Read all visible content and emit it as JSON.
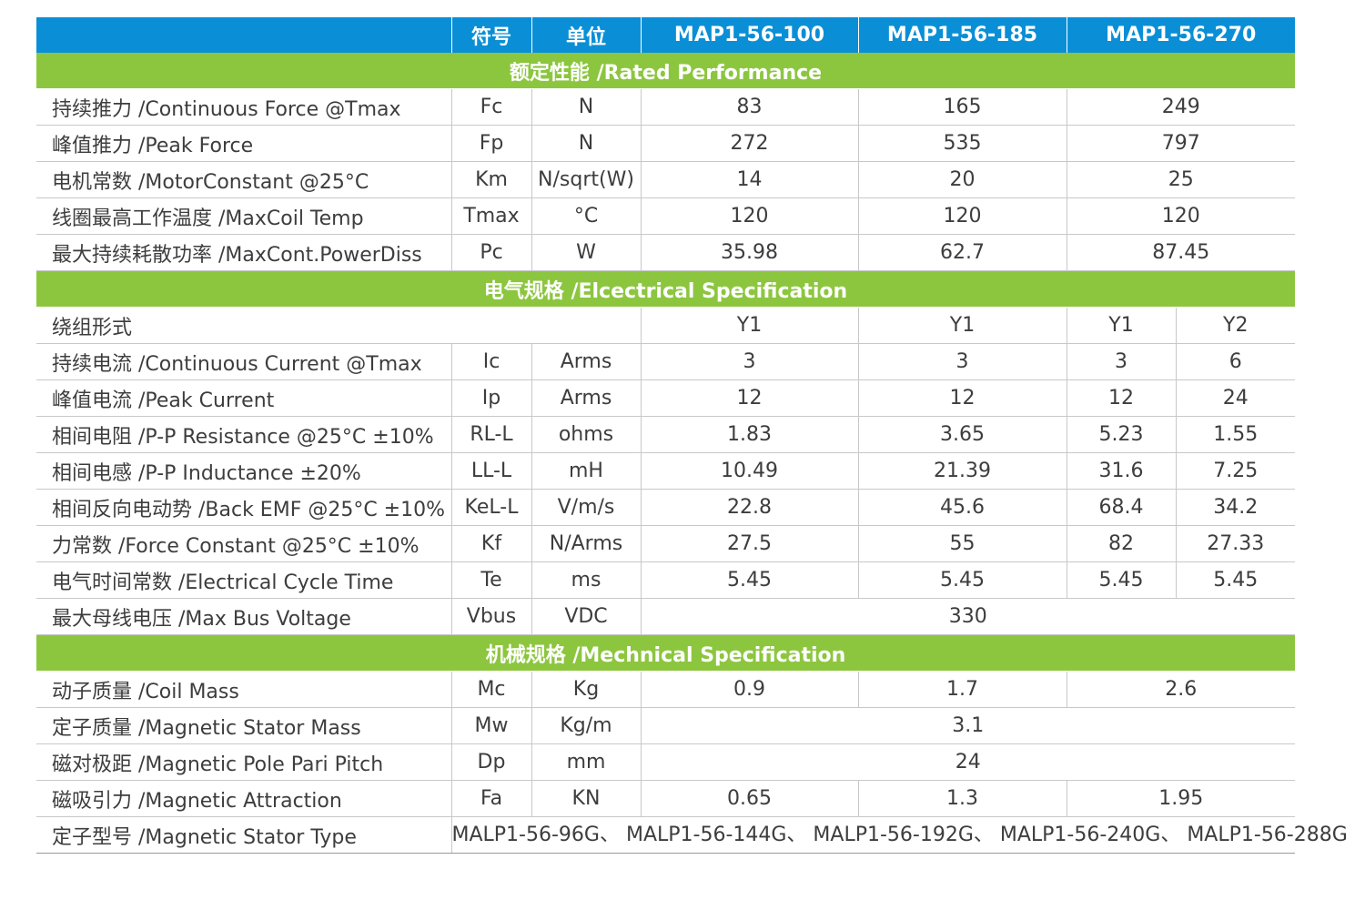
{
  "header": {
    "blank": "",
    "symbol": "符号",
    "unit": "单位",
    "models": [
      "MAP1-56-100",
      "MAP1-56-185",
      "MAP1-56-270"
    ]
  },
  "sections": {
    "rated": "额定性能 /Rated Performance",
    "electrical": "电气规格 /Elcectrical Specification",
    "mechanical": "机械规格 /Mechnical Specification"
  },
  "rated_rows": [
    {
      "param": "持续推力 /Continuous Force @Tmax",
      "symbol": "Fc",
      "unit": "N",
      "v": [
        "83",
        "165",
        "249"
      ]
    },
    {
      "param": "峰值推力 /Peak Force",
      "symbol": "Fp",
      "unit": "N",
      "v": [
        "272",
        "535",
        "797"
      ]
    },
    {
      "param": "电机常数 /MotorConstant @25°C",
      "symbol": "Km",
      "unit": "N/sqrt(W)",
      "v": [
        "14",
        "20",
        "25"
      ]
    },
    {
      "param": "线圈最高工作温度 /MaxCoil Temp",
      "symbol": "Tmax",
      "unit": "°C",
      "v": [
        "120",
        "120",
        "120"
      ]
    },
    {
      "param": "最大持续耗散功率 /MaxCont.PowerDiss",
      "symbol": "Pc",
      "unit": "W",
      "v": [
        "35.98",
        "62.7",
        "87.45"
      ]
    }
  ],
  "winding": {
    "param": "绕组形式",
    "v": [
      "Y1",
      "Y1",
      "Y1",
      "Y2"
    ]
  },
  "electrical_rows": [
    {
      "param": "持续电流 /Continuous Current @Tmax",
      "symbol": "Ic",
      "unit": "Arms",
      "v": [
        "3",
        "3",
        "3",
        "6"
      ]
    },
    {
      "param": "峰值电流 /Peak Current",
      "symbol": "Ip",
      "unit": "Arms",
      "v": [
        "12",
        "12",
        "12",
        "24"
      ]
    },
    {
      "param": "相间电阻 /P-P Resistance @25°C ±10%",
      "symbol": "RL-L",
      "unit": "ohms",
      "v": [
        "1.83",
        "3.65",
        "5.23",
        "1.55"
      ]
    },
    {
      "param": "相间电感 /P-P Inductance ±20%",
      "symbol": "LL-L",
      "unit": "mH",
      "v": [
        "10.49",
        "21.39",
        "31.6",
        "7.25"
      ]
    },
    {
      "param": "相间反向电动势 /Back EMF @25°C ±10%",
      "symbol": "KeL-L",
      "unit": "V/m/s",
      "v": [
        "22.8",
        "45.6",
        "68.4",
        "34.2"
      ]
    },
    {
      "param": "力常数 /Force Constant @25°C ±10%",
      "symbol": "Kf",
      "unit": "N/Arms",
      "v": [
        "27.5",
        "55",
        "82",
        "27.33"
      ]
    },
    {
      "param": "电气时间常数 /Electrical Cycle Time",
      "symbol": "Te",
      "unit": "ms",
      "v": [
        "5.45",
        "5.45",
        "5.45",
        "5.45"
      ]
    }
  ],
  "bus_voltage": {
    "param": "最大母线电压 /Max Bus Voltage",
    "symbol": "Vbus",
    "unit": "VDC",
    "value": "330"
  },
  "coil_mass": {
    "param": "动子质量 /Coil Mass",
    "symbol": "Mc",
    "unit": "Kg",
    "v": [
      "0.9",
      "1.7",
      "2.6"
    ]
  },
  "stator_mass": {
    "param": "定子质量 /Magnetic Stator Mass",
    "symbol": "Mw",
    "unit": "Kg/m",
    "value": "3.1"
  },
  "pole_pitch": {
    "param": "磁对极距 /Magnetic Pole Pari Pitch",
    "symbol": "Dp",
    "unit": "mm",
    "value": "24"
  },
  "attraction": {
    "param": "磁吸引力 /Magnetic Attraction",
    "symbol": "Fa",
    "unit": "KN",
    "v": [
      "0.65",
      "1.3",
      "1.95"
    ]
  },
  "stator_type": {
    "param": "定子型号 /Magnetic Stator Type",
    "value": "MALP1-56-96G、 MALP1-56-144G、 MALP1-56-192G、 MALP1-56-240G、 MALP1-56-288G"
  }
}
